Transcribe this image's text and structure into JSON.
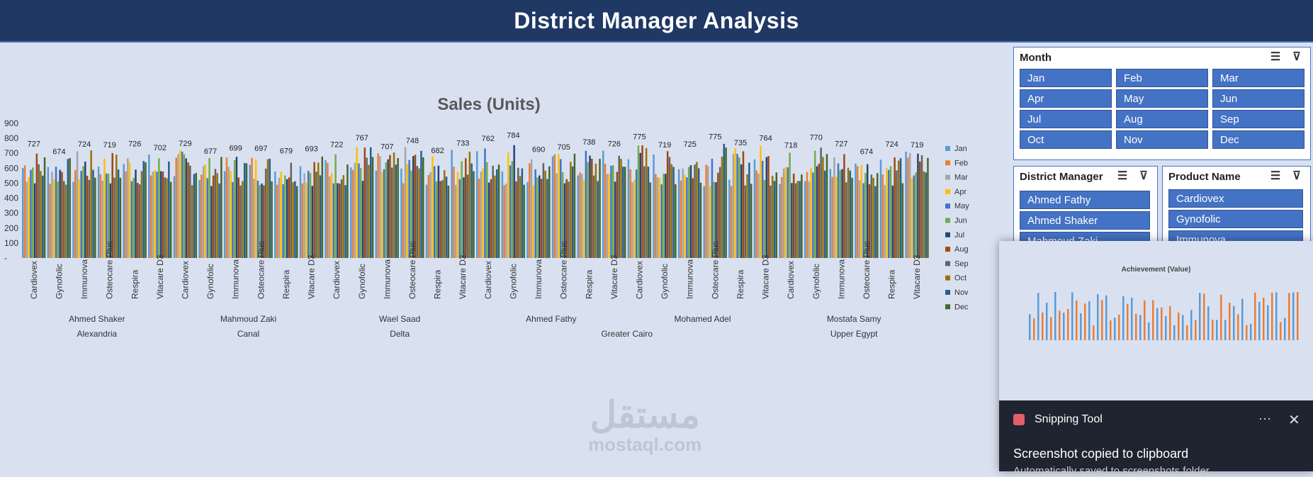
{
  "title": "District Manager Analysis",
  "chart_data": {
    "type": "bar",
    "title": "Sales (Units)",
    "y_ticks": [
      "900",
      "800",
      "700",
      "600",
      "500",
      "400",
      "300",
      "200",
      "100",
      "-"
    ],
    "ylim": [
      0,
      900
    ],
    "series_names": [
      "Jan",
      "Feb",
      "Mar",
      "Apr",
      "May",
      "Jun",
      "Jul",
      "Aug",
      "Sep",
      "Oct",
      "Nov",
      "Dec"
    ],
    "series_colors": [
      "#5b9bd5",
      "#ed7d31",
      "#a5a5a5",
      "#ffc000",
      "#4472c4",
      "#70ad47",
      "#264478",
      "#9e480e",
      "#636363",
      "#997300",
      "#255e91",
      "#43682b"
    ],
    "products": [
      "Cardiovex",
      "Gynofolic",
      "Immunova",
      "Osteocare Plus",
      "Respira",
      "Vitacare D3"
    ],
    "managers": [
      "Ahmed Shaker",
      "Mahmoud Zaki",
      "Wael Saad",
      "Ahmed Fathy",
      "Mohamed Adel",
      "Mostafa Samy"
    ],
    "regions": [
      "Alexandria",
      "Canal",
      "Delta",
      "Greater Cairo",
      "Upper Egypt"
    ],
    "peak_values": [
      727,
      674,
      724,
      719,
      726,
      702,
      729,
      677,
      699,
      697,
      679,
      693,
      722,
      767,
      707,
      748,
      682,
      733,
      762,
      784,
      690,
      705,
      738,
      726,
      775,
      719,
      725,
      775,
      735,
      764,
      718,
      770
    ]
  },
  "slicers": {
    "month": {
      "title": "Month",
      "items": [
        "Jan",
        "Feb",
        "Mar",
        "Apr",
        "May",
        "Jun",
        "Jul",
        "Aug",
        "Sep",
        "Oct",
        "Nov",
        "Dec"
      ]
    },
    "manager": {
      "title": "District Manager",
      "items": [
        "Ahmed Fathy",
        "Ahmed Shaker",
        "Mahmoud Zaki"
      ]
    },
    "product": {
      "title": "Product Name",
      "items": [
        "Cardiovex",
        "Gynofolic",
        "Immunova"
      ]
    }
  },
  "toast": {
    "app": "Snipping Tool",
    "message": "Screenshot copied to clipboard",
    "sub": "Automatically saved to screenshots folder",
    "thumb_title": "Achievement (Value)",
    "more": "···",
    "close": "✕"
  },
  "watermark": {
    "arabic": "مستقل",
    "latin": "mostaql.com"
  }
}
